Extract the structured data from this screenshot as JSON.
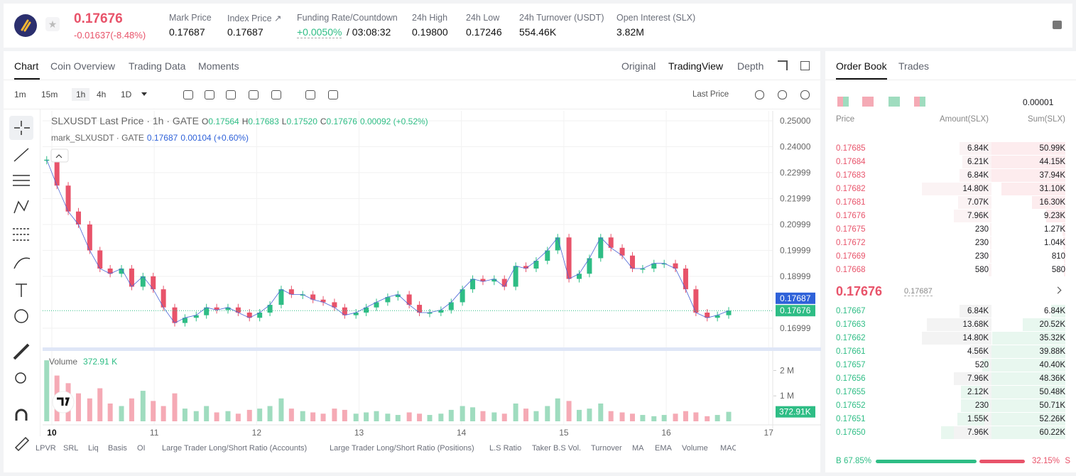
{
  "header": {
    "price": "0.17676",
    "change": "-0.01637(-8.48%)",
    "stats": [
      {
        "label": "Mark Price",
        "value": "0.17687"
      },
      {
        "label": "Index Price ↗",
        "value": "0.17687"
      },
      {
        "label": "Funding Rate/Countdown",
        "value": "+0.0050%",
        "extra": "/ 03:08:32"
      },
      {
        "label": "24h High",
        "value": "0.19800"
      },
      {
        "label": "24h Low",
        "value": "0.17246"
      },
      {
        "label": "24h Turnover (USDT)",
        "value": "554.46K"
      },
      {
        "label": "Open Interest (SLX)",
        "value": "3.82M"
      }
    ]
  },
  "tabs": [
    "Chart",
    "Coin Overview",
    "Trading Data",
    "Moments"
  ],
  "views": [
    "Original",
    "TradingView",
    "Depth"
  ],
  "intervals": [
    "1m",
    "15m",
    "1h",
    "4h",
    "1D"
  ],
  "price_source": "Last Price",
  "legend": {
    "symbol": "SLXUSDT Last Price · 1h · GATE",
    "o_label": "O",
    "o": "0.17564",
    "h_label": "H",
    "h": "0.17683",
    "l_label": "L",
    "l": "0.17520",
    "c_label": "C",
    "c": "0.17676",
    "chg": "0.00092 (+0.52%)",
    "mark": "mark_SLXUSDT · GATE",
    "mark_value": "0.17687",
    "mark_chg": "0.00104 (+0.60%)",
    "volume": "Volume",
    "volume_value": "372.91 K"
  },
  "indicators": [
    "LPVR",
    "SRL",
    "Liq",
    "Basis",
    "OI",
    "Large Trader Long/Short Ratio (Accounts)",
    "Large Trader Long/Short Ratio (Positions)",
    "L.S Ratio",
    "Taker B.S Vol.",
    "Turnover",
    "MA",
    "EMA",
    "Volume",
    "MACD"
  ],
  "chart_data": {
    "type": "candlestick",
    "x": [
      9.95,
      10.05,
      10.16,
      10.26,
      10.37,
      10.47,
      10.57,
      10.68,
      10.78,
      10.89,
      10.99,
      11.09,
      11.2,
      11.3,
      11.41,
      11.51,
      11.61,
      11.72,
      11.82,
      11.93,
      12.03,
      12.13,
      12.24,
      12.34,
      12.45,
      12.55,
      12.65,
      12.76,
      12.86,
      12.97,
      13.07,
      13.17,
      13.28,
      13.38,
      13.49,
      13.59,
      13.69,
      13.8,
      13.9,
      14.01,
      14.11,
      14.21,
      14.32,
      14.42,
      14.53,
      14.63,
      14.73,
      14.84,
      14.94,
      15.05,
      15.15,
      15.25,
      15.36,
      15.46,
      15.57,
      15.67,
      15.77,
      15.88,
      15.98,
      16.09,
      16.19,
      16.29,
      16.4,
      16.5,
      16.61
    ],
    "series": [
      {
        "name": "SLXUSDT",
        "values": [
          0.235,
          0.225,
          0.215,
          0.21,
          0.2,
          0.193,
          0.191,
          0.193,
          0.186,
          0.19,
          0.185,
          0.178,
          0.172,
          0.174,
          0.175,
          0.178,
          0.177,
          0.178,
          0.176,
          0.174,
          0.176,
          0.179,
          0.185,
          0.183,
          0.183,
          0.181,
          0.18,
          0.178,
          0.175,
          0.176,
          0.178,
          0.18,
          0.182,
          0.183,
          0.179,
          0.176,
          0.176,
          0.177,
          0.18,
          0.185,
          0.189,
          0.188,
          0.189,
          0.186,
          0.194,
          0.193,
          0.196,
          0.2,
          0.205,
          0.189,
          0.191,
          0.197,
          0.205,
          0.201,
          0.198,
          0.193,
          0.193,
          0.195,
          0.195,
          0.193,
          0.185,
          0.176,
          0.174,
          0.175,
          0.17676
        ]
      },
      {
        "name": "Volume",
        "axis": "y2",
        "values": [
          2400000,
          1800000,
          1500000,
          1100000,
          900000,
          1300000,
          700000,
          600000,
          900000,
          1200000,
          800000,
          600000,
          1100000,
          500000,
          400000,
          600000,
          350000,
          400000,
          300000,
          450000,
          500000,
          600000,
          900000,
          500000,
          400000,
          350000,
          300000,
          500000,
          450000,
          300000,
          350000,
          400000,
          300000,
          250000,
          350000,
          300000,
          250000,
          300000,
          450000,
          600000,
          550000,
          400000,
          350000,
          300000,
          700000,
          500000,
          400000,
          600000,
          900000,
          800000,
          450000,
          500000,
          700000,
          400000,
          350000,
          300000,
          250000,
          200000,
          250000,
          300000,
          400000,
          350000,
          200000,
          250000,
          372910
        ]
      }
    ],
    "up_color": "#2ebd85",
    "down_color": "#e8536a",
    "xlim": [
      9.91,
      17.04
    ],
    "xticks": [
      10,
      11,
      12,
      13,
      14,
      15,
      16,
      17
    ],
    "ylim": [
      0.1623,
      0.2522
    ],
    "yticks": [
      {
        "value": 0.25,
        "label": "0.25000"
      },
      {
        "value": 0.24,
        "label": "0.24000"
      },
      {
        "value": 0.22999,
        "label": "0.22999"
      },
      {
        "value": 0.21999,
        "label": "0.21999"
      },
      {
        "value": 0.20999,
        "label": "0.20999"
      },
      {
        "value": 0.19999,
        "label": "0.19999"
      },
      {
        "value": 0.18999,
        "label": "0.18999"
      },
      {
        "value": 0.16999,
        "label": "0.16999"
      }
    ],
    "y2lim": [
      0,
      2600000
    ],
    "y2ticks": [
      {
        "value": 2000000,
        "label": "2 M"
      },
      {
        "value": 1000000,
        "label": "1 M"
      }
    ],
    "last_price": {
      "value": 0.17676,
      "label": "0.17676"
    },
    "mark_price": {
      "value": 0.17687,
      "label": "0.17687"
    },
    "last_volume": {
      "value": 372910,
      "label": "372.91K"
    },
    "grid": true
  },
  "order_book": {
    "tabs": [
      "Order Book",
      "Trades"
    ],
    "precision": "0.00001",
    "columns": [
      "Price",
      "Amount(SLX)",
      "Sum(SLX)"
    ],
    "asks": [
      [
        "0.17685",
        "6.84K",
        "50.99K"
      ],
      [
        "0.17684",
        "6.21K",
        "44.15K"
      ],
      [
        "0.17683",
        "6.84K",
        "37.94K"
      ],
      [
        "0.17682",
        "14.80K",
        "31.10K"
      ],
      [
        "0.17681",
        "7.07K",
        "16.30K"
      ],
      [
        "0.17676",
        "7.96K",
        "9.23K"
      ],
      [
        "0.17675",
        "230",
        "1.27K"
      ],
      [
        "0.17672",
        "230",
        "1.04K"
      ],
      [
        "0.17669",
        "230",
        "810"
      ],
      [
        "0.17668",
        "580",
        "580"
      ]
    ],
    "mid": "0.17676",
    "mid_mark": "0.17687",
    "bids": [
      [
        "0.17667",
        "6.84K",
        "6.84K"
      ],
      [
        "0.17663",
        "13.68K",
        "20.52K"
      ],
      [
        "0.17662",
        "14.80K",
        "35.32K"
      ],
      [
        "0.17661",
        "4.56K",
        "39.88K"
      ],
      [
        "0.17657",
        "520",
        "40.40K"
      ],
      [
        "0.17656",
        "7.96K",
        "48.36K"
      ],
      [
        "0.17655",
        "2.12K",
        "50.48K"
      ],
      [
        "0.17652",
        "230",
        "50.71K"
      ],
      [
        "0.17651",
        "1.55K",
        "52.26K"
      ],
      [
        "0.17650",
        "7.96K",
        "60.22K"
      ]
    ],
    "buy_label": "B",
    "buy_pct": "67.85%",
    "sell_pct": "32.15%",
    "sell_label": "S"
  }
}
